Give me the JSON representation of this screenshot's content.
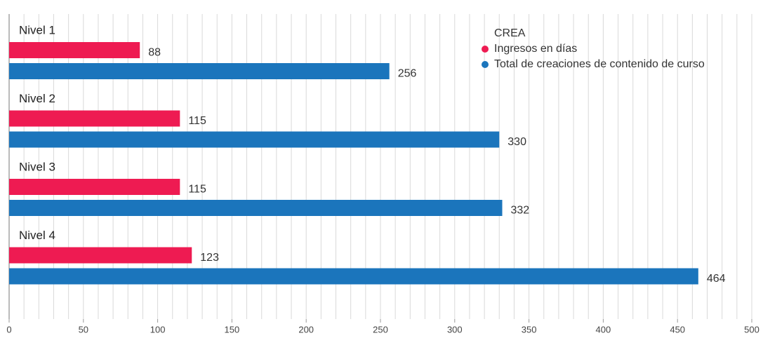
{
  "chart_data": {
    "type": "hbar",
    "categories": [
      "Nivel 1",
      "Nivel 2",
      "Nivel 3",
      "Nivel 4"
    ],
    "legend_title": "CREA",
    "legend": "upper right",
    "series": [
      {
        "name": "Ingresos en días",
        "color": "#ee1b52",
        "values": [
          88,
          115,
          115,
          123
        ]
      },
      {
        "name": "Total de creaciones de contenido de curso",
        "color": "#1b75bc",
        "values": [
          256,
          330,
          332,
          464
        ]
      }
    ],
    "xlim": [
      0,
      500
    ],
    "xticks": [
      0,
      50,
      100,
      150,
      200,
      250,
      300,
      350,
      400,
      450,
      500
    ],
    "xminorticks": [
      0,
      10,
      20,
      30,
      40,
      50,
      60,
      70,
      80,
      90,
      100,
      110,
      120,
      130,
      140,
      150,
      160,
      170,
      180,
      190,
      200,
      210,
      220,
      230,
      240,
      250,
      260,
      270,
      280,
      290,
      300,
      310,
      320,
      330,
      340,
      350,
      360,
      370,
      380,
      390,
      400,
      410,
      420,
      430,
      440,
      450,
      460,
      470,
      480,
      490,
      500
    ],
    "grid": true
  }
}
